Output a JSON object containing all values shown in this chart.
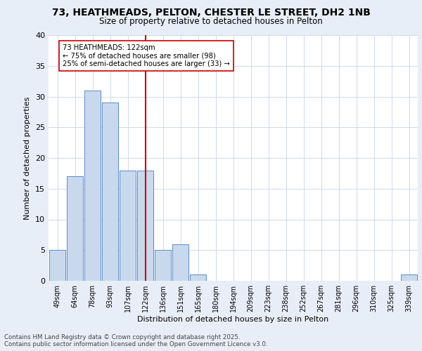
{
  "title_line1": "73, HEATHMEADS, PELTON, CHESTER LE STREET, DH2 1NB",
  "title_line2": "Size of property relative to detached houses in Pelton",
  "xlabel": "Distribution of detached houses by size in Pelton",
  "ylabel": "Number of detached properties",
  "categories": [
    "49sqm",
    "64sqm",
    "78sqm",
    "93sqm",
    "107sqm",
    "122sqm",
    "136sqm",
    "151sqm",
    "165sqm",
    "180sqm",
    "194sqm",
    "209sqm",
    "223sqm",
    "238sqm",
    "252sqm",
    "267sqm",
    "281sqm",
    "296sqm",
    "310sqm",
    "325sqm",
    "339sqm"
  ],
  "values": [
    5,
    17,
    31,
    29,
    18,
    18,
    5,
    6,
    1,
    0,
    0,
    0,
    0,
    0,
    0,
    0,
    0,
    0,
    0,
    0,
    1
  ],
  "bar_color": "#c9d9ed",
  "bar_edge_color": "#5b8cc8",
  "vline_index": 5,
  "vline_color": "#cc0000",
  "annotation_title": "73 HEATHMEADS: 122sqm",
  "annotation_line1": "← 75% of detached houses are smaller (98)",
  "annotation_line2": "25% of semi-detached houses are larger (33) →",
  "ylim": [
    0,
    40
  ],
  "yticks": [
    0,
    5,
    10,
    15,
    20,
    25,
    30,
    35,
    40
  ],
  "footer_line1": "Contains HM Land Registry data © Crown copyright and database right 2025.",
  "footer_line2": "Contains public sector information licensed under the Open Government Licence v3.0.",
  "bg_color": "#e8eef7",
  "plot_bg_color": "#ffffff",
  "grid_color": "#c8d4e8"
}
